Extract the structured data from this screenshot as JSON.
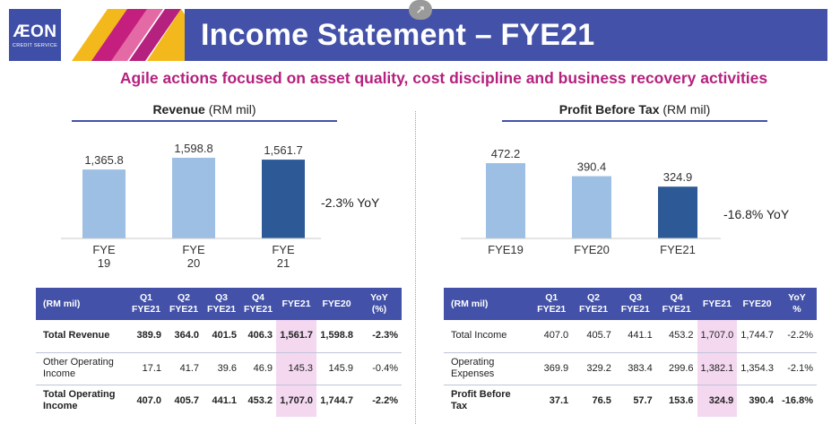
{
  "header": {
    "title": "Income Statement – FYE21",
    "logo_text": "ÆON",
    "logo_sub": "CREDIT SERVICE",
    "subtitle": "Agile actions focused on asset quality, cost discipline and business recovery activities",
    "share_icon": "external-link-icon"
  },
  "colors": {
    "brand_blue": "#4352a8",
    "accent_magenta": "#b4217e",
    "bar_light": "#9dbfe3",
    "bar_dark": "#2d5a97",
    "highlight": "#f4d8f0"
  },
  "chart_data": [
    {
      "type": "bar",
      "title": "Revenue",
      "unit": "(RM mil)",
      "categories": [
        "FYE\n19",
        "FYE\n20",
        "FYE\n21"
      ],
      "values": [
        1365.8,
        1598.8,
        1561.7
      ],
      "value_labels": [
        "1,365.8",
        "1,598.8",
        "1,561.7"
      ],
      "yoy": "-2.3% YoY",
      "highlight_index": 2
    },
    {
      "type": "bar",
      "title": "Profit Before Tax",
      "unit": "(RM mil)",
      "categories": [
        "FYE19",
        "FYE20",
        "FYE21"
      ],
      "values": [
        472.2,
        390.4,
        324.9
      ],
      "value_labels": [
        "472.2",
        "390.4",
        "324.9"
      ],
      "yoy": "-16.8% YoY",
      "highlight_index": 2
    }
  ],
  "tables": {
    "left": {
      "columns": [
        "(RM mil)",
        "Q1\nFYE21",
        "Q2\nFYE21",
        "Q3\nFYE21",
        "Q4\nFYE21",
        "FYE21",
        "FYE20",
        "YoY\n(%)"
      ],
      "rows": [
        {
          "label": "Total Revenue",
          "bold": true,
          "cells": [
            "389.9",
            "364.0",
            "401.5",
            "406.3",
            "1,561.7",
            "1,598.8",
            "-2.3%"
          ]
        },
        {
          "label": "Other Operating Income",
          "bold": false,
          "cells": [
            "17.1",
            "41.7",
            "39.6",
            "46.9",
            "145.3",
            "145.9",
            "-0.4%"
          ]
        },
        {
          "label": "Total Operating Income",
          "bold": true,
          "cells": [
            "407.0",
            "405.7",
            "441.1",
            "453.2",
            "1,707.0",
            "1,744.7",
            "-2.2%"
          ]
        }
      ]
    },
    "right": {
      "columns": [
        "(RM mil)",
        "Q1\nFYE21",
        "Q2\nFYE21",
        "Q3\nFYE21",
        "Q4\nFYE21",
        "FYE21",
        "FYE20",
        "YoY\n%"
      ],
      "rows": [
        {
          "label": "Total Income",
          "bold": false,
          "cells": [
            "407.0",
            "405.7",
            "441.1",
            "453.2",
            "1,707.0",
            "1,744.7",
            "-2.2%"
          ]
        },
        {
          "label": "Operating Expenses",
          "bold": false,
          "cells": [
            "369.9",
            "329.2",
            "383.4",
            "299.6",
            "1,382.1",
            "1,354.3",
            "-2.1%"
          ]
        },
        {
          "label": "Profit Before Tax",
          "bold": true,
          "cells": [
            "37.1",
            "76.5",
            "57.7",
            "153.6",
            "324.9",
            "390.4",
            "-16.8%"
          ]
        }
      ]
    }
  }
}
